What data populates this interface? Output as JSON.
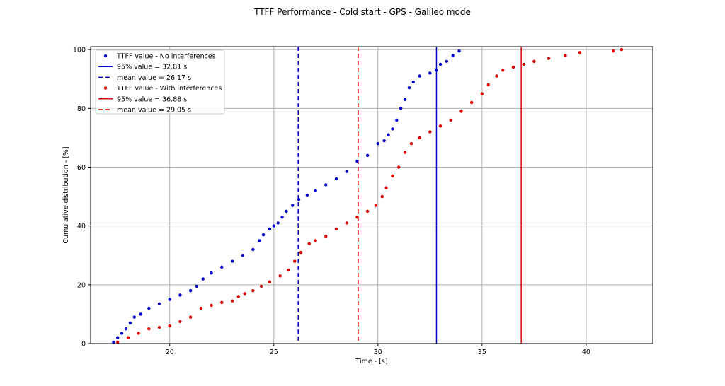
{
  "chart_data": {
    "type": "scatter",
    "title": "TTFF Performance - Cold start - GPS - Galileo mode",
    "xlabel": "Time - [s]",
    "ylabel": "Cumulative distribution - [%]",
    "xlim": [
      16.2,
      43.2
    ],
    "ylim": [
      0,
      101
    ],
    "xticks": [
      20,
      25,
      30,
      35,
      40
    ],
    "yticks": [
      0,
      20,
      40,
      60,
      80,
      100
    ],
    "grid": true,
    "legend_position": "top-left",
    "colors": {
      "no_interference": "#0000cc",
      "with_interference": "#dd0000",
      "grid": "#b0b0b0"
    },
    "series": [
      {
        "name": "TTFF value - No interferences",
        "color": "#0000cc",
        "marker": "dot",
        "x": [
          17.3,
          17.5,
          17.7,
          17.9,
          18.1,
          18.3,
          18.6,
          19.0,
          19.5,
          20.0,
          20.5,
          21.0,
          21.3,
          21.6,
          22.0,
          22.5,
          23.0,
          23.5,
          24.0,
          24.3,
          24.5,
          24.8,
          25.0,
          25.2,
          25.4,
          25.6,
          25.9,
          26.2,
          26.6,
          27.0,
          27.5,
          28.0,
          28.5,
          29.0,
          29.5,
          30.0,
          30.3,
          30.5,
          30.7,
          30.9,
          31.1,
          31.3,
          31.5,
          31.7,
          32.0,
          32.5,
          32.8,
          33.0,
          33.3,
          33.6,
          33.9
        ],
        "y": [
          0.5,
          2,
          3.5,
          5,
          7,
          9,
          10,
          12,
          13.5,
          15,
          16.5,
          18,
          19.5,
          22,
          24,
          26,
          28,
          30,
          32,
          35,
          37,
          39,
          40,
          41,
          43,
          45,
          47,
          49,
          50.5,
          52,
          54,
          56,
          58.5,
          62,
          64,
          68,
          69,
          71,
          73,
          76,
          80,
          83,
          87,
          89,
          91,
          92,
          93,
          95,
          96,
          98,
          99.5
        ]
      },
      {
        "name": "TTFF value - With interferences",
        "color": "#dd0000",
        "marker": "dot",
        "x": [
          17.5,
          18.0,
          18.5,
          19.0,
          19.5,
          20.0,
          20.5,
          21.0,
          21.5,
          22.0,
          22.5,
          23.0,
          23.3,
          23.6,
          24.0,
          24.4,
          24.8,
          25.3,
          25.7,
          26.0,
          26.3,
          26.7,
          27.0,
          27.5,
          28.0,
          28.5,
          29.0,
          29.5,
          29.9,
          30.2,
          30.4,
          30.7,
          31.0,
          31.3,
          31.6,
          32.0,
          32.5,
          33.0,
          33.5,
          34.0,
          34.5,
          35.0,
          35.3,
          35.7,
          36.0,
          36.5,
          37.0,
          37.5,
          38.2,
          39.0,
          39.7,
          41.3,
          41.7
        ],
        "y": [
          0.5,
          2,
          3.5,
          5,
          5.5,
          6,
          7.5,
          9,
          12,
          13,
          14,
          14.5,
          16,
          17,
          18,
          19.5,
          21,
          23,
          25,
          28,
          31,
          34,
          35,
          36.5,
          39,
          41,
          43,
          45,
          47,
          50,
          53,
          57,
          60,
          65,
          68,
          70,
          72,
          74,
          76,
          79,
          82,
          85,
          88,
          91,
          93,
          94,
          95,
          96,
          97,
          98,
          99,
          99.5,
          100
        ]
      }
    ],
    "lines": [
      {
        "label": "95% value = 32.81 s",
        "x": 32.81,
        "color": "#0000cc",
        "style": "solid"
      },
      {
        "label": "mean value = 26.17 s",
        "x": 26.17,
        "color": "#0000cc",
        "style": "dashed"
      },
      {
        "label": "95% value = 36.88 s",
        "x": 36.88,
        "color": "#dd0000",
        "style": "solid"
      },
      {
        "label": "mean value = 29.05 s",
        "x": 29.05,
        "color": "#dd0000",
        "style": "dashed"
      }
    ],
    "legend": [
      {
        "label": "TTFF value - No interferences",
        "kind": "dot",
        "color": "#0000cc"
      },
      {
        "label": "95% value = 32.81 s",
        "kind": "solid",
        "color": "#0000cc"
      },
      {
        "label": "mean value = 26.17 s",
        "kind": "dashed",
        "color": "#0000cc"
      },
      {
        "label": "TTFF value - With interferences",
        "kind": "dot",
        "color": "#dd0000"
      },
      {
        "label": "95% value = 36.88 s",
        "kind": "solid",
        "color": "#dd0000"
      },
      {
        "label": "mean value = 29.05 s",
        "kind": "dashed",
        "color": "#dd0000"
      }
    ]
  }
}
